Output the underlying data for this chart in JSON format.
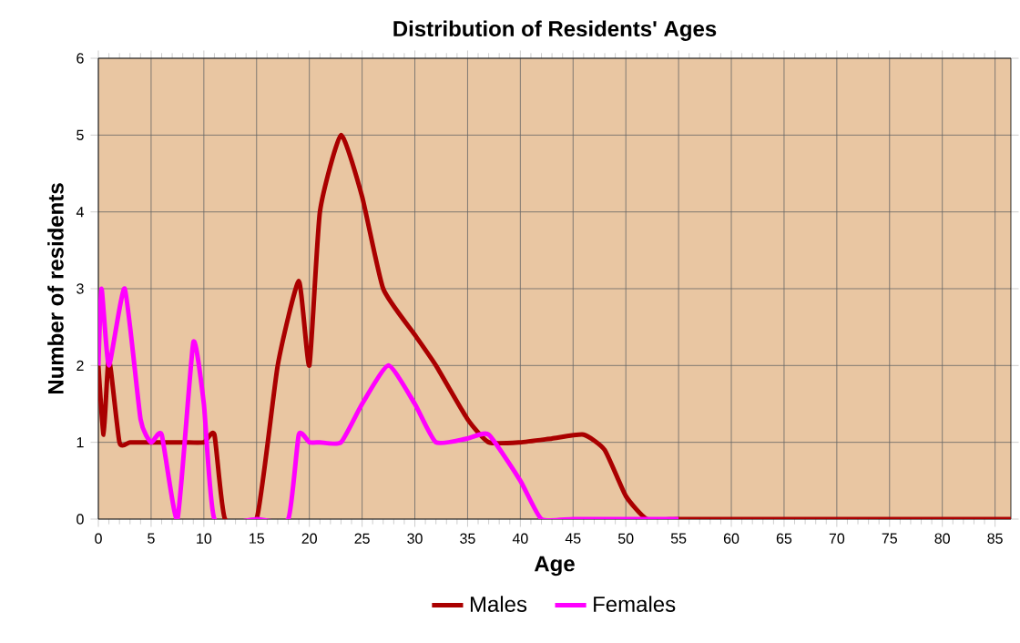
{
  "chart_data": {
    "type": "line",
    "title": "Distribution of Residents' Ages",
    "xlabel": "Age",
    "ylabel": "Number of residents",
    "xlim": [
      0,
      86.5
    ],
    "xticks": [
      0,
      5,
      10,
      15,
      20,
      25,
      30,
      35,
      40,
      45,
      50,
      55,
      60,
      65,
      70,
      75,
      80,
      85
    ],
    "ylim": [
      0,
      6
    ],
    "yticks": [
      0,
      1,
      2,
      3,
      4,
      5,
      6
    ],
    "grid": true,
    "legend": "bottom",
    "marker": "none",
    "line_style": "solid",
    "series": [
      {
        "name": "Males",
        "color": "#aa0000",
        "x": [
          0,
          0.5,
          1,
          2,
          3,
          5,
          8,
          10,
          11,
          12,
          15,
          17,
          19,
          20,
          21,
          23,
          25,
          27,
          30,
          32,
          35,
          37,
          40,
          43,
          46,
          48,
          50,
          52,
          55,
          60,
          70,
          80,
          86.5
        ],
        "values": [
          2,
          1.1,
          2.1,
          1,
          1,
          1,
          1,
          1,
          1.1,
          0,
          0,
          2,
          3.1,
          2,
          4,
          5,
          4.2,
          3,
          2.4,
          2,
          1.3,
          1,
          1,
          1.05,
          1.1,
          0.9,
          0.3,
          0,
          0,
          0,
          0,
          0,
          0
        ]
      },
      {
        "name": "Females",
        "color": "#ff00ff",
        "x": [
          0,
          0.3,
          1,
          2.5,
          4,
          5,
          6,
          7.5,
          9,
          10,
          11,
          15,
          18,
          19,
          20,
          21,
          23,
          25,
          27.5,
          30,
          32,
          35,
          37,
          40,
          42,
          45,
          50,
          55
        ],
        "values": [
          2,
          3,
          2,
          3,
          1.3,
          1,
          1.1,
          0,
          2.3,
          1.5,
          0,
          0,
          0,
          1.1,
          1,
          1,
          1,
          1.5,
          2,
          1.5,
          1,
          1.05,
          1.1,
          0.5,
          0,
          0,
          0,
          0
        ]
      }
    ]
  }
}
